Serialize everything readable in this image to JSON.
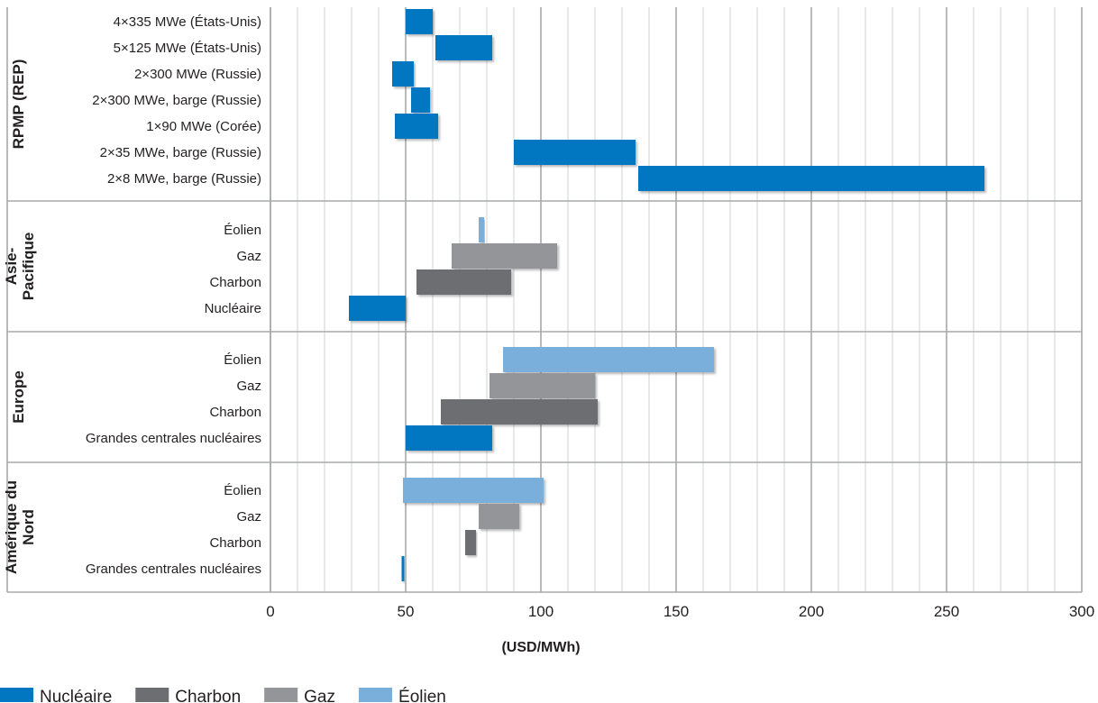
{
  "chart_data": {
    "type": "bar",
    "orientation": "horizontal",
    "subtype": "floating-range",
    "xlabel": "(USD/MWh)",
    "xlim": [
      0,
      300
    ],
    "xticks": [
      0,
      50,
      100,
      150,
      200,
      250,
      300
    ],
    "grid": true,
    "legend_position": "bottom-left",
    "colors": {
      "Nucléaire": "#0077c0",
      "Charbon": "#6d6e71",
      "Gaz": "#939598",
      "Éolien": "#7aafdc"
    },
    "legend": [
      "Nucléaire",
      "Charbon",
      "Gaz",
      "Éolien"
    ],
    "groups": [
      {
        "name": "RPMP (REP)",
        "rows": [
          {
            "label": "4×335 MWe (États-Unis)",
            "series": "Nucléaire",
            "min": 50,
            "max": 60
          },
          {
            "label": "5×125 MWe (États-Unis)",
            "series": "Nucléaire",
            "min": 61,
            "max": 82
          },
          {
            "label": "2×300 MWe (Russie)",
            "series": "Nucléaire",
            "min": 45,
            "max": 53
          },
          {
            "label": "2×300 MWe, barge (Russie)",
            "series": "Nucléaire",
            "min": 52,
            "max": 59
          },
          {
            "label": "1×90 MWe (Corée)",
            "series": "Nucléaire",
            "min": 46,
            "max": 62
          },
          {
            "label": "2×35 MWe, barge (Russie)",
            "series": "Nucléaire",
            "min": 90,
            "max": 135
          },
          {
            "label": "2×8 MWe, barge (Russie)",
            "series": "Nucléaire",
            "min": 136,
            "max": 264
          }
        ]
      },
      {
        "name": "Asie-Pacifique",
        "rows": [
          {
            "label": "Éolien",
            "series": "Éolien",
            "min": 77,
            "max": 79
          },
          {
            "label": "Gaz",
            "series": "Gaz",
            "min": 67,
            "max": 106
          },
          {
            "label": "Charbon",
            "series": "Charbon",
            "min": 54,
            "max": 89
          },
          {
            "label": "Nucléaire",
            "series": "Nucléaire",
            "min": 29,
            "max": 50
          }
        ]
      },
      {
        "name": "Europe",
        "rows": [
          {
            "label": "Éolien",
            "series": "Éolien",
            "min": 86,
            "max": 164
          },
          {
            "label": "Gaz",
            "series": "Gaz",
            "min": 81,
            "max": 120
          },
          {
            "label": "Charbon",
            "series": "Charbon",
            "min": 63,
            "max": 121
          },
          {
            "label": "Grandes centrales nucléaires",
            "series": "Nucléaire",
            "min": 50,
            "max": 82
          }
        ]
      },
      {
        "name": "Amérique du Nord",
        "rows": [
          {
            "label": "Éolien",
            "series": "Éolien",
            "min": 49,
            "max": 101
          },
          {
            "label": "Gaz",
            "series": "Gaz",
            "min": 77,
            "max": 92
          },
          {
            "label": "Charbon",
            "series": "Charbon",
            "min": 72,
            "max": 76
          },
          {
            "label": "Grandes centrales nucléaires",
            "series": "Nucléaire",
            "min": 48.5,
            "max": 49.5
          }
        ]
      }
    ]
  }
}
